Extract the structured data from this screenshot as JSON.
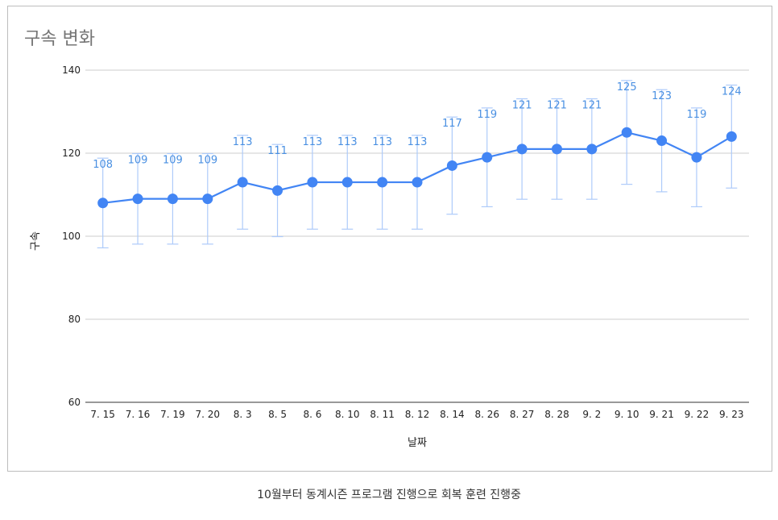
{
  "chart_data": {
    "type": "line",
    "title": "구속 변화",
    "xlabel": "날짜",
    "ylabel": "구속",
    "ylim": [
      60,
      140
    ],
    "yticks": [
      60,
      80,
      100,
      120,
      140
    ],
    "categories": [
      "7. 15",
      "7. 16",
      "7. 19",
      "7. 20",
      "8. 3",
      "8. 5",
      "8. 6",
      "8. 10",
      "8. 11",
      "8. 12",
      "8. 14",
      "8. 26",
      "8. 27",
      "8. 28",
      "9. 2",
      "9. 10",
      "9. 21",
      "9. 22",
      "9. 23"
    ],
    "series": [
      {
        "values": [
          108,
          109,
          109,
          109,
          113,
          111,
          113,
          113,
          113,
          113,
          117,
          119,
          121,
          121,
          121,
          125,
          123,
          119,
          124
        ],
        "error_low": [
          97.2,
          98.1,
          98.1,
          98.1,
          101.7,
          99.9,
          101.7,
          101.7,
          101.7,
          101.7,
          105.3,
          107.1,
          108.9,
          108.9,
          108.9,
          112.5,
          110.7,
          107.1,
          111.6
        ],
        "error_high": [
          118.8,
          119.9,
          119.9,
          119.9,
          124.3,
          122.1,
          124.3,
          124.3,
          124.3,
          124.3,
          128.7,
          130.9,
          133.1,
          133.1,
          133.1,
          137.5,
          135.3,
          130.9,
          136.4
        ]
      }
    ],
    "grid": true,
    "legend": "none",
    "colors": {
      "line": "#4285f4",
      "error_bar": "#aecbfa",
      "data_label": "#4a90e2",
      "grid": "#cccccc"
    }
  },
  "caption": "10월부터 동계시즌 프로그램 진행으로 회복 훈련 진행중"
}
